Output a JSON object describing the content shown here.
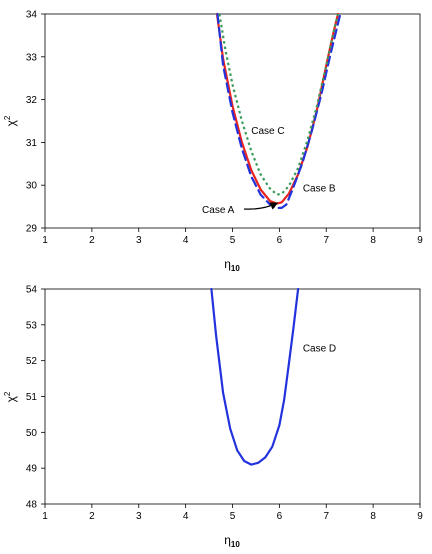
{
  "chart_data": [
    {
      "type": "line",
      "xlabel": "η",
      "xlabel_subscript": "10",
      "ylabel": "χ",
      "ylabel_superscript": "2",
      "xlim": [
        1,
        9
      ],
      "ylim": [
        29,
        34
      ],
      "xticks": [
        "1",
        "2",
        "3",
        "4",
        "5",
        "6",
        "7",
        "8",
        "9"
      ],
      "yticks": [
        "29",
        "30",
        "31",
        "32",
        "33",
        "34"
      ],
      "grid": false,
      "series": [
        {
          "name": "Case A",
          "color": "#e8231f",
          "style": "solid",
          "x": [
            4.67,
            4.8,
            5.0,
            5.2,
            5.4,
            5.6,
            5.8,
            5.95,
            6.05,
            6.2,
            6.4,
            6.6,
            6.8,
            7.0,
            7.15,
            7.25
          ],
          "y": [
            34.0,
            32.95,
            31.85,
            31.0,
            30.35,
            29.9,
            29.63,
            29.57,
            29.6,
            29.8,
            30.25,
            30.9,
            31.75,
            32.8,
            33.55,
            34.0
          ]
        },
        {
          "name": "Case B",
          "color": "#2233dd",
          "style": "dashed",
          "x": [
            4.68,
            4.8,
            5.0,
            5.2,
            5.4,
            5.6,
            5.8,
            5.95,
            6.05,
            6.15,
            6.3,
            6.5,
            6.7,
            6.9,
            7.1,
            7.3
          ],
          "y": [
            34.0,
            32.8,
            31.7,
            30.85,
            30.2,
            29.78,
            29.55,
            29.47,
            29.47,
            29.55,
            29.95,
            30.55,
            31.3,
            32.15,
            33.1,
            34.0
          ]
        },
        {
          "name": "Case C",
          "color": "#3a9a5c",
          "style": "dotted",
          "x": [
            4.72,
            4.85,
            5.0,
            5.2,
            5.4,
            5.6,
            5.8,
            5.95,
            6.05,
            6.2,
            6.4,
            6.6,
            6.8,
            7.0,
            7.15,
            7.25
          ],
          "y": [
            34.0,
            33.15,
            32.35,
            31.5,
            30.8,
            30.25,
            29.92,
            29.78,
            29.8,
            29.98,
            30.4,
            31.05,
            31.85,
            32.8,
            33.55,
            34.0
          ]
        }
      ],
      "annotations": [
        {
          "text": "Case C",
          "x": 5.4,
          "y": 31.2
        },
        {
          "text": "Case B",
          "x": 6.5,
          "y": 29.85
        },
        {
          "text": "Case A",
          "x": 4.35,
          "y": 29.35,
          "arrow_to": [
            6.0,
            29.62
          ]
        }
      ]
    },
    {
      "type": "line",
      "xlabel": "η",
      "xlabel_subscript": "10",
      "ylabel": "χ",
      "ylabel_superscript": "2",
      "xlim": [
        1,
        9
      ],
      "ylim": [
        48,
        54
      ],
      "xticks": [
        "1",
        "2",
        "3",
        "4",
        "5",
        "6",
        "7",
        "8",
        "9"
      ],
      "yticks": [
        "48",
        "49",
        "50",
        "51",
        "52",
        "53",
        "54"
      ],
      "grid": false,
      "series": [
        {
          "name": "Case D",
          "color": "#2233dd",
          "style": "solid",
          "x": [
            4.55,
            4.65,
            4.8,
            4.95,
            5.1,
            5.25,
            5.4,
            5.55,
            5.7,
            5.85,
            6.0,
            6.1,
            6.2,
            6.3,
            6.4
          ],
          "y": [
            54.0,
            52.7,
            51.1,
            50.1,
            49.5,
            49.2,
            49.1,
            49.15,
            49.3,
            49.6,
            50.2,
            50.9,
            51.9,
            52.9,
            54.0
          ]
        }
      ],
      "annotations": [
        {
          "text": "Case D",
          "x": 6.5,
          "y": 52.25
        }
      ]
    }
  ]
}
